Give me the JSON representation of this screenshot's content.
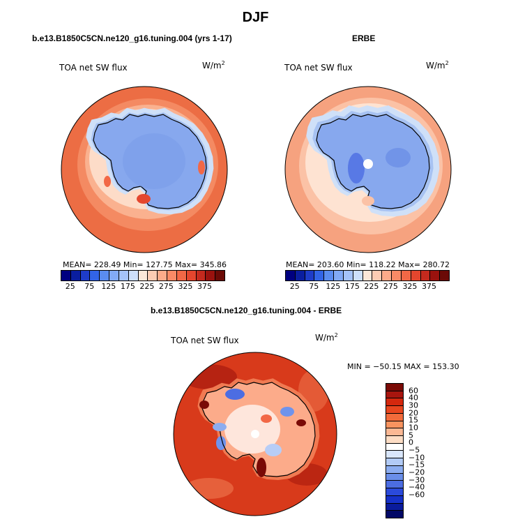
{
  "season": "DJF",
  "panels": [
    {
      "title": "b.e13.B1850C5CN.ne120_g16.tuning.004 (yrs 1-17)",
      "variable_label": "TOA net SW flux",
      "units_base": "W/m",
      "units_exp": "2",
      "stats": "MEAN= 228.49   Min= 127.75   Max= 345.86"
    },
    {
      "title": "ERBE",
      "variable_label": "TOA net SW flux",
      "units_base": "W/m",
      "units_exp": "2",
      "stats": "MEAN= 203.60   Min= 118.22   Max= 280.72"
    },
    {
      "title": "b.e13.B1850C5CN.ne120_g16.tuning.004 - ERBE",
      "variable_label": "TOA net SW flux",
      "units_base": "W/m",
      "units_exp": "2",
      "stats": "MIN = −50.15  MAX = 153.30"
    }
  ],
  "abs_colorbar": {
    "colors": [
      "#000080",
      "#0a1ea0",
      "#1e3cc8",
      "#3264e6",
      "#5a8cf0",
      "#82aaf5",
      "#a5c3f8",
      "#cde0fb",
      "#fbe7d8",
      "#fcccb3",
      "#fcab8a",
      "#f98a66",
      "#f26846",
      "#e4462e",
      "#c42a1e",
      "#9a120e",
      "#6b0a06"
    ],
    "ticks": [
      "25",
      "75",
      "125",
      "175",
      "225",
      "275",
      "325",
      "375"
    ]
  },
  "diff_colorbar": {
    "colors": [
      "#7a0a06",
      "#a8150e",
      "#d4280e",
      "#e8461f",
      "#f26b3b",
      "#f8935f",
      "#fbb894",
      "#fdddc5",
      "#ffffff",
      "#d9e6fb",
      "#b2cbf6",
      "#8cadf0",
      "#6a8ee8",
      "#4c6de2",
      "#2b4adb",
      "#1631c9",
      "#0a1b9c",
      "#020866"
    ],
    "ticks": [
      "60",
      "40",
      "30",
      "20",
      "15",
      "10",
      "5",
      "0",
      "−5",
      "−10",
      "−15",
      "−20",
      "−30",
      "−40",
      "−60"
    ]
  },
  "map_colors": {
    "ocean_far": "#ec6d44",
    "ocean_mid": "#f48a62",
    "ocean_near": "#fab18f",
    "ice_edge": "#fddcc8",
    "ice_pale": "#cfe0f8",
    "ice_light": "#a7c2f2",
    "ice_mid": "#87a8ee",
    "ice_deep": "#6b8fe6",
    "obs_far": "#f6a27f",
    "obs_mid": "#fbc2a6",
    "obs_near": "#fee3d2",
    "diff_ocean": "#d83a1b",
    "diff_dark": "#a8190e",
    "diff_light": "#f07a52",
    "diff_white": "#ffffff",
    "diff_blue": "#6f93ec",
    "diff_blue_light": "#b7cdf6",
    "coast": "#000000"
  }
}
